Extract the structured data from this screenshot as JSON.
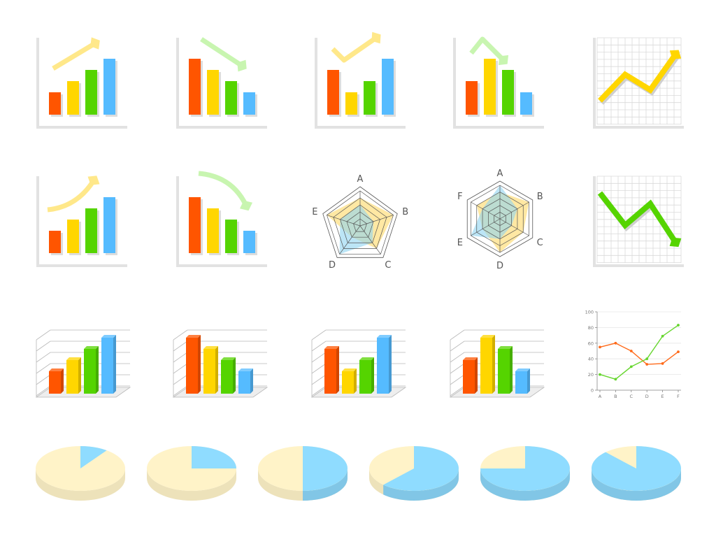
{
  "palette": {
    "red": "#ff5500",
    "yellow": "#ffd600",
    "green": "#55d400",
    "blue": "#55bbff",
    "cream": "#fff3c8",
    "sky": "#8fdcff",
    "arrow_yellow": "#ffe88a",
    "arrow_green": "#c8f5b0",
    "line_orange": "#ff6a1a",
    "line_green": "#66d62e",
    "frame": "#e2e2e2",
    "radar_grid": "#555555",
    "radar_yellow": "#ffd966",
    "radar_blue": "#8fd3f0"
  },
  "chart_data": [
    {
      "type": "bar",
      "style": "flat",
      "trend": "up",
      "arrow": "straight-up",
      "values": [
        2,
        3,
        4,
        5
      ]
    },
    {
      "type": "bar",
      "style": "flat",
      "trend": "down",
      "arrow": "straight-down",
      "values": [
        5,
        4,
        3,
        2
      ]
    },
    {
      "type": "bar",
      "style": "flat",
      "trend": "v",
      "arrow": "check",
      "values": [
        4,
        2,
        3,
        5
      ]
    },
    {
      "type": "bar",
      "style": "flat",
      "trend": "peak",
      "arrow": "peak-down",
      "values": [
        3,
        5,
        4,
        2
      ]
    },
    {
      "type": "line",
      "style": "grid-arrow",
      "color": "yellow",
      "grid": true,
      "points": [
        [
          0,
          1
        ],
        [
          1,
          2.7
        ],
        [
          2,
          1.7
        ],
        [
          3,
          4
        ]
      ]
    },
    {
      "type": "bar",
      "style": "flat",
      "trend": "up",
      "arrow": "curved-up",
      "values": [
        2,
        3,
        4,
        5
      ]
    },
    {
      "type": "bar",
      "style": "flat",
      "trend": "down",
      "arrow": "curved-down",
      "values": [
        5,
        4,
        3,
        2
      ]
    },
    {
      "type": "radar",
      "axes": [
        "A",
        "B",
        "C",
        "D",
        "E"
      ],
      "series": [
        {
          "color": "yellow",
          "values": [
            4,
            5,
            4,
            2,
            5
          ]
        },
        {
          "color": "blue",
          "values": [
            3,
            2,
            3,
            5,
            3
          ]
        }
      ]
    },
    {
      "type": "radar",
      "axes": [
        "A",
        "B",
        "C",
        "D",
        "E",
        "F"
      ],
      "series": [
        {
          "color": "yellow",
          "values": [
            4,
            5,
            4,
            5,
            3,
            4
          ]
        },
        {
          "color": "blue",
          "values": [
            5,
            3,
            2,
            3,
            5,
            3
          ]
        }
      ]
    },
    {
      "type": "line",
      "style": "grid-arrow",
      "color": "green",
      "grid": true,
      "points": [
        [
          0,
          4
        ],
        [
          1,
          1.9
        ],
        [
          2,
          3.3
        ],
        [
          3,
          0.8
        ]
      ]
    },
    {
      "type": "bar",
      "style": "3d",
      "values": [
        2,
        3,
        4,
        5
      ]
    },
    {
      "type": "bar",
      "style": "3d",
      "values": [
        5,
        4,
        3,
        2
      ]
    },
    {
      "type": "bar",
      "style": "3d",
      "values": [
        4,
        2,
        3,
        5
      ]
    },
    {
      "type": "bar",
      "style": "3d",
      "values": [
        3,
        5,
        4,
        2
      ]
    },
    {
      "type": "line",
      "style": "axes",
      "categories": [
        "A",
        "B",
        "C",
        "D",
        "E",
        "F"
      ],
      "ylim": [
        0,
        100
      ],
      "yticks": [
        "0",
        "20",
        "40",
        "60",
        "80",
        "100"
      ],
      "grid": true,
      "series": [
        {
          "color": "orange",
          "values": [
            55,
            60,
            50,
            33,
            34,
            49
          ]
        },
        {
          "color": "green",
          "values": [
            20,
            14,
            30,
            40,
            69,
            83
          ]
        }
      ]
    },
    {
      "type": "pie",
      "style": "3d",
      "values": [
        10,
        90
      ]
    },
    {
      "type": "pie",
      "style": "3d",
      "values": [
        25,
        75
      ]
    },
    {
      "type": "pie",
      "style": "3d",
      "values": [
        50,
        50
      ]
    },
    {
      "type": "pie",
      "style": "3d",
      "values": [
        62,
        38
      ]
    },
    {
      "type": "pie",
      "style": "3d",
      "values": [
        75,
        25
      ]
    },
    {
      "type": "pie",
      "style": "3d",
      "values": [
        88,
        12
      ]
    }
  ]
}
